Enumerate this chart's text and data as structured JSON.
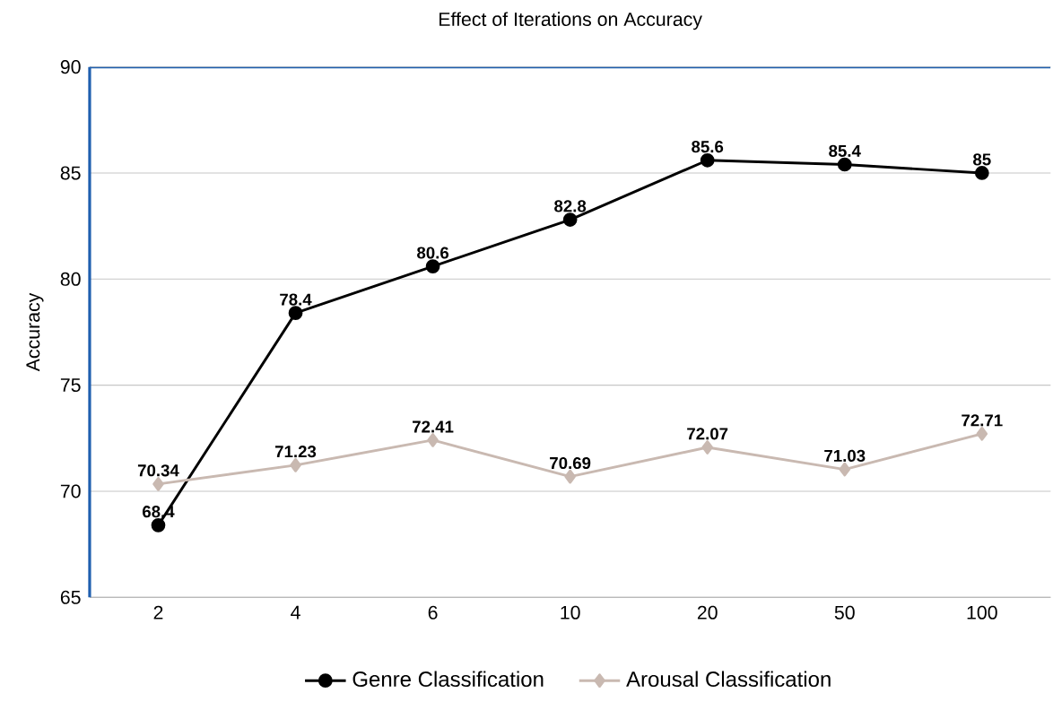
{
  "chart_data": {
    "type": "line",
    "title": "Effect of Iterations on Accuracy",
    "ylabel": "Accuracy",
    "categories": [
      "2",
      "4",
      "6",
      "10",
      "20",
      "50",
      "100"
    ],
    "series": [
      {
        "name": "Genre Classification",
        "color": "#000000",
        "marker": "circle",
        "values": [
          68.4,
          78.4,
          80.6,
          82.8,
          85.6,
          85.4,
          85
        ]
      },
      {
        "name": "Arousal Classification",
        "color": "#c9b9b1",
        "marker": "diamond",
        "values": [
          70.34,
          71.23,
          72.41,
          70.69,
          72.07,
          71.03,
          72.71
        ]
      }
    ],
    "ylim": [
      65,
      90
    ],
    "yticks": [
      65,
      70,
      75,
      80,
      85,
      90
    ],
    "grid": "y",
    "legend": "bottom",
    "data_labels": true,
    "line_style": "solid"
  }
}
